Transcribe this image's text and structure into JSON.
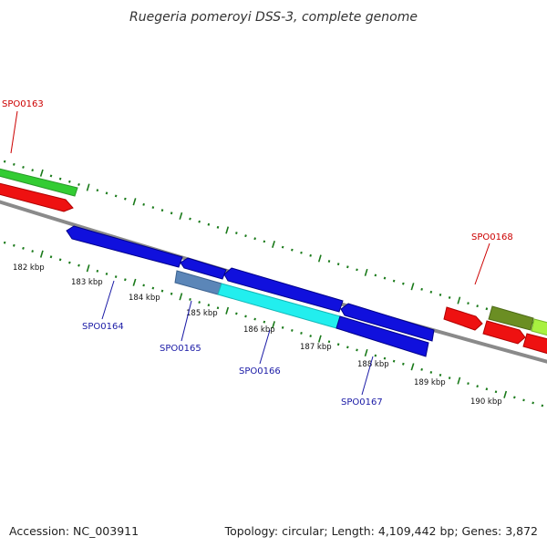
{
  "title": "Ruegeria pomeroyi DSS-3, complete genome",
  "footer": {
    "accession": "Accession: NC_003911",
    "summary": "Topology: circular; Length: 4,109,442 bp; Genes: 3,872"
  },
  "scale_labels": [
    "182 kbp",
    "183 kbp",
    "184 kbp",
    "185 kbp",
    "186 kbp",
    "187 kbp",
    "188 kbp",
    "189 kbp",
    "190 kbp"
  ],
  "gene_labels": {
    "top": [
      {
        "text": "SPO0163",
        "color": "#cc0000"
      },
      {
        "text": "SPO0168",
        "color": "#cc0000"
      }
    ],
    "bottom": [
      {
        "text": "SPO0164",
        "color": "#1a1aa6"
      },
      {
        "text": "SPO0165",
        "color": "#1a1aa6"
      },
      {
        "text": "SPO0166",
        "color": "#1a1aa6"
      },
      {
        "text": "SPO0167",
        "color": "#1a1aa6"
      }
    ]
  },
  "colors": {
    "backbone": "#8a8a8a",
    "forward_cds": "#ee1111",
    "reverse_cds": "#1010dd",
    "cyan_feature": "#22eeee",
    "steel_feature": "#5b86b8",
    "green_feature": "#33cc33",
    "olive_feature": "#6b8e23",
    "lime_feature": "#a8f040",
    "tick": "#1a7a1a"
  }
}
